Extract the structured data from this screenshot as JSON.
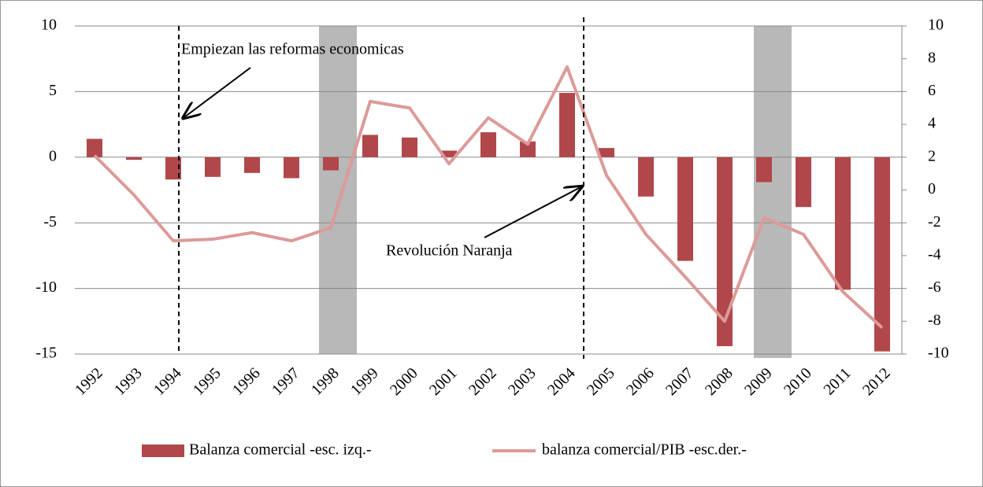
{
  "chart_data": {
    "type": "bar_line",
    "categories": [
      "1992",
      "1993",
      "1994",
      "1995",
      "1996",
      "1997",
      "1998",
      "1999",
      "2000",
      "2001",
      "2002",
      "2003",
      "2004",
      "2005",
      "2006",
      "2007",
      "2008",
      "2009",
      "2010",
      "2011",
      "2012"
    ],
    "series": [
      {
        "name": "Balanza comercial -esc. izq.-",
        "color": "#b0474a",
        "type": "bar",
        "values": [
          1.4,
          -0.2,
          -1.7,
          -1.5,
          -1.2,
          -1.6,
          -1.0,
          1.7,
          1.5,
          0.5,
          1.9,
          1.2,
          4.9,
          0.7,
          -3.0,
          -7.9,
          -14.4,
          -1.9,
          -3.8,
          -10.1,
          -14.8
        ]
      },
      {
        "name": "balanza comercial/PIB -esc.der.-",
        "color": "#dc9a98",
        "type": "line",
        "axis": "y2",
        "values": [
          2.1,
          -0.3,
          -3.1,
          -3.0,
          -2.6,
          -3.1,
          -2.3,
          5.4,
          5.0,
          1.6,
          4.4,
          2.8,
          7.5,
          0.9,
          -2.7,
          -5.3,
          -8.0,
          -1.7,
          -2.7,
          -6.2,
          -8.4
        ]
      }
    ],
    "ylim": [
      -15,
      10
    ],
    "yticks": [
      -15,
      -10,
      -5,
      0,
      5,
      10
    ],
    "y2lim": [
      -10,
      10
    ],
    "y2ticks": [
      -10,
      -8,
      -6,
      -4,
      -2,
      0,
      2,
      4,
      6,
      8,
      10
    ],
    "grid": true,
    "annotations": [
      "Empiezan las reformas economicas",
      "Revolución Naranja"
    ]
  }
}
